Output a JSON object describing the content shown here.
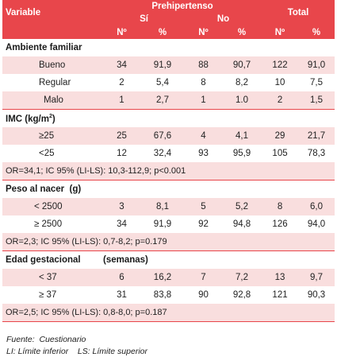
{
  "header": {
    "variable": "Variable",
    "prehipertenso": "Prehipertenso",
    "si": "Sí",
    "no": "No",
    "total": "Total",
    "n": "Nº",
    "pct": "%"
  },
  "sections": [
    {
      "title": "Ambiente familiar",
      "rows": [
        {
          "label": "Bueno",
          "values": [
            "34",
            "91,9",
            "88",
            "90,7",
            "122",
            "91,0"
          ]
        },
        {
          "label": "Regular",
          "values": [
            "2",
            "5,4",
            "8",
            "8,2",
            "10",
            "7,5"
          ]
        },
        {
          "label": "Malo",
          "values": [
            "1",
            "2,7",
            "1",
            "1.0",
            "2",
            "1,5"
          ]
        }
      ]
    },
    {
      "title": "IMC (kg/m",
      "title_sup": "2",
      "title_end": ")",
      "rows": [
        {
          "label": "≥25",
          "values": [
            "25",
            "67,6",
            "4",
            "4,1",
            "29",
            "21,7"
          ]
        },
        {
          "label": "<25",
          "values": [
            "12",
            "32,4",
            "93",
            "95,9",
            "105",
            "78,3"
          ]
        }
      ],
      "note": "OR=34,1; IC 95% (LI-LS): 10,3-112,9; p<0.001"
    },
    {
      "title": "Peso al nacer  (g)",
      "rows": [
        {
          "label": "< 2500",
          "values": [
            "3",
            "8,1",
            "5",
            "5,2",
            "8",
            "6,0"
          ]
        },
        {
          "label": "≥ 2500",
          "values": [
            "34",
            "91,9",
            "92",
            "94,8",
            "126",
            "94,0"
          ]
        }
      ],
      "note": "OR=2,3; IC 95% (LI-LS): 0,7-8,2; p=0.179"
    },
    {
      "title": "Edad gestacional",
      "title_extra": "(semanas)",
      "rows": [
        {
          "label": "< 37",
          "values": [
            "6",
            "16,2",
            "7",
            "7,2",
            "13",
            "9,7"
          ]
        },
        {
          "label": "≥ 37",
          "values": [
            "31",
            "83,8",
            "90",
            "92,8",
            "121",
            "90,3"
          ]
        }
      ],
      "note": "OR=2,5; IC 95% (LI-LS): 0,8-8,0; p=0.187"
    }
  ],
  "footer": {
    "source": "Fuente:  Cuestionario",
    "legend": "LI: Límite inferior    LS: Límite superior"
  }
}
